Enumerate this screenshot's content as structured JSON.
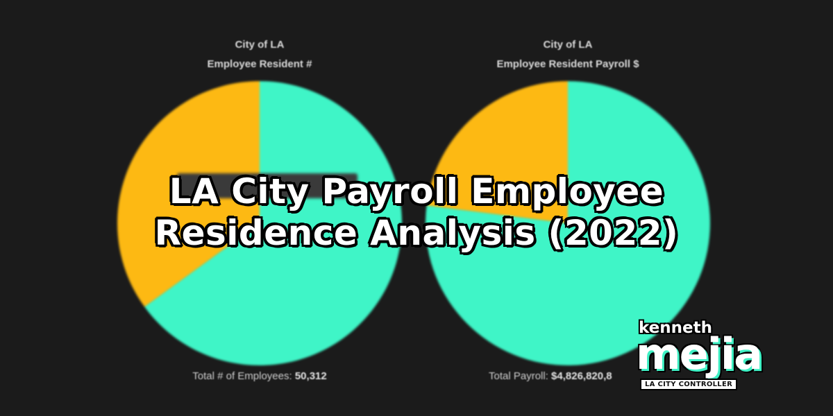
{
  "headline": {
    "line1": "LA City Payroll Employee",
    "line2": "Residence Analysis (2022)"
  },
  "colors": {
    "background": "#1b1b1b",
    "resident": "#3ff5c7",
    "nonresident": "#fdb913"
  },
  "chart_data": [
    {
      "type": "pie",
      "title": "City of LA",
      "subtitle": "Employee Resident #",
      "slices": [
        {
          "share": 0.65,
          "color": "#3ff5c7"
        },
        {
          "share": 0.35,
          "color": "#fdb913"
        }
      ],
      "footer_label": "Total # of Employees:",
      "footer_value": "50,312"
    },
    {
      "type": "pie",
      "title": "City of LA",
      "subtitle": "Employee Resident Payroll $",
      "slices": [
        {
          "share": 0.77,
          "color": "#3ff5c7"
        },
        {
          "share": 0.23,
          "color": "#fdb913"
        }
      ],
      "footer_label": "Total Payroll:",
      "footer_value": "$4,826,820,8"
    }
  ],
  "logo": {
    "top": "kenneth",
    "main": "mejia",
    "sub": "LA CITY CONTROLLER"
  }
}
